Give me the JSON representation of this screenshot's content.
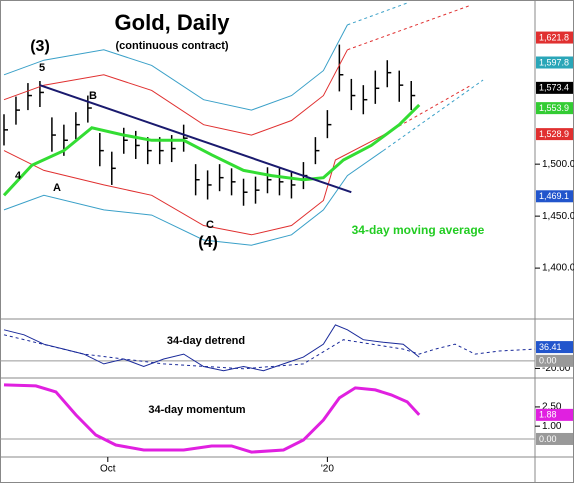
{
  "chart_data": [
    {
      "type": "ohlc",
      "title": "Gold, Daily",
      "subtitle": "(continuous contract)",
      "xlim": [
        -1,
        133
      ],
      "xticks": [
        {
          "value": 26,
          "label": "Oct"
        },
        {
          "value": 81,
          "label": "'20"
        }
      ],
      "ylim": [
        1352,
        1656
      ],
      "yticks": [
        {
          "value": 1400,
          "label": "1,400.0"
        },
        {
          "value": 1450,
          "label": "1,450.0"
        },
        {
          "value": 1500,
          "label": "1,500.0"
        }
      ],
      "series": [
        {
          "name": "price",
          "type": "ohlc",
          "color": "#000000",
          "x": [
            0,
            3,
            6,
            9,
            12,
            15,
            18,
            21,
            24,
            27,
            30,
            33,
            36,
            39,
            42,
            45,
            48,
            51,
            54,
            57,
            60,
            63,
            66,
            69,
            72,
            75,
            78,
            81,
            84,
            87,
            90,
            93,
            96,
            99,
            102
          ],
          "high": [
            1548,
            1565,
            1578,
            1580,
            1545,
            1538,
            1550,
            1566,
            1530,
            1512,
            1535,
            1532,
            1526,
            1526,
            1528,
            1538,
            1500,
            1494,
            1500,
            1496,
            1486,
            1488,
            1497,
            1496,
            1493,
            1502,
            1526,
            1552,
            1615,
            1582,
            1576,
            1590,
            1600,
            1590,
            1580
          ],
          "low": [
            1518,
            1538,
            1552,
            1555,
            1512,
            1508,
            1524,
            1540,
            1498,
            1480,
            1510,
            1505,
            1500,
            1500,
            1502,
            1512,
            1470,
            1466,
            1474,
            1470,
            1460,
            1462,
            1472,
            1470,
            1467,
            1476,
            1500,
            1525,
            1570,
            1552,
            1548,
            1558,
            1574,
            1560,
            1552
          ],
          "close": [
            1533,
            1552,
            1566,
            1569,
            1528,
            1523,
            1538,
            1554,
            1513,
            1496,
            1523,
            1518,
            1513,
            1513,
            1515,
            1525,
            1485,
            1480,
            1487,
            1483,
            1473,
            1475,
            1485,
            1483,
            1480,
            1489,
            1513,
            1538,
            1586,
            1566,
            1562,
            1573,
            1588,
            1576,
            1566
          ]
        },
        {
          "name": "upper outer band",
          "type": "line",
          "color": "#3aa0c8",
          "width": 1,
          "dashed": false,
          "x": [
            0,
            10,
            25,
            37,
            50,
            62,
            72,
            80,
            86
          ],
          "values": [
            1586,
            1600,
            1610,
            1595,
            1562,
            1552,
            1566,
            1590,
            1634
          ]
        },
        {
          "name": "upper outer projection",
          "type": "line",
          "color": "#3aa0c8",
          "width": 1,
          "dashed": true,
          "x": [
            86,
            101
          ],
          "values": [
            1634,
            1655
          ]
        },
        {
          "name": "upper inner band",
          "type": "line",
          "color": "#e03030",
          "width": 1,
          "dashed": false,
          "x": [
            0,
            10,
            25,
            37,
            50,
            62,
            72,
            80,
            86
          ],
          "values": [
            1562,
            1576,
            1586,
            1571,
            1538,
            1528,
            1542,
            1566,
            1610
          ]
        },
        {
          "name": "upper inner projection",
          "type": "line",
          "color": "#e03030",
          "width": 1,
          "dashed": true,
          "x": [
            86,
            117
          ],
          "values": [
            1610,
            1653
          ]
        },
        {
          "name": "lower inner band",
          "type": "line",
          "color": "#e03030",
          "width": 1,
          "dashed": false,
          "x": [
            0,
            10,
            25,
            37,
            50,
            62,
            72,
            80,
            83,
            95
          ],
          "values": [
            1513,
            1494,
            1480,
            1470,
            1441,
            1432,
            1441,
            1465,
            1504,
            1528
          ]
        },
        {
          "name": "lower inner projection",
          "type": "line",
          "color": "#e03030",
          "width": 1,
          "dashed": true,
          "x": [
            95,
            117
          ],
          "values": [
            1528,
            1576
          ]
        },
        {
          "name": "lower outer band",
          "type": "line",
          "color": "#3aa0c8",
          "width": 1,
          "dashed": false,
          "x": [
            0,
            10,
            25,
            37,
            50,
            62,
            72,
            80,
            86,
            95
          ],
          "values": [
            1456,
            1470,
            1456,
            1451,
            1427,
            1422,
            1432,
            1456,
            1489,
            1513
          ]
        },
        {
          "name": "lower outer projection",
          "type": "line",
          "color": "#3aa0c8",
          "width": 1,
          "dashed": true,
          "x": [
            95,
            120
          ],
          "values": [
            1513,
            1581
          ]
        },
        {
          "name": "34-day moving average",
          "type": "line",
          "color": "#33dd33",
          "width": 3,
          "dashed": false,
          "x": [
            0,
            7,
            15,
            22,
            30,
            37,
            45,
            52,
            60,
            67,
            75,
            80,
            85,
            92,
            99,
            104
          ],
          "values": [
            1470,
            1499,
            1513,
            1535,
            1528,
            1523,
            1523,
            1509,
            1494,
            1489,
            1485,
            1487,
            1504,
            1518,
            1538,
            1557
          ]
        },
        {
          "name": "trendline",
          "type": "line",
          "color": "#1a1a6e",
          "width": 2,
          "dashed": false,
          "x": [
            9,
            87
          ],
          "values": [
            1576,
            1473
          ]
        }
      ],
      "last_values": [
        {
          "value": 1621.8,
          "label": "1,621.8",
          "color": "#e03030"
        },
        {
          "value": 1597.8,
          "label": "1,597.8",
          "color": "#2aa6b8"
        },
        {
          "value": 1573.4,
          "label": "1,573.4",
          "color": "#000000"
        },
        {
          "value": 1553.9,
          "label": "1,553.9",
          "color": "#33cc33"
        },
        {
          "value": 1528.9,
          "label": "1,528.9",
          "color": "#e03030"
        },
        {
          "value": 1469.1,
          "label": "1,469.1",
          "color": "#2255cc"
        }
      ],
      "annotations": [
        "(3)",
        "5",
        "B",
        "4",
        "A",
        "C",
        "(4)",
        "34-day moving average"
      ]
    },
    {
      "type": "line",
      "ylim": [
        -40,
        108
      ],
      "yticks": [
        {
          "value": -20,
          "label": "-20.00"
        }
      ],
      "series": [
        {
          "name": "34-day detrend",
          "type": "line",
          "color": "#1a2a9a",
          "width": 1,
          "dashed": false,
          "x": [
            0,
            5,
            10,
            15,
            20,
            25,
            30,
            35,
            40,
            45,
            50,
            55,
            60,
            65,
            70,
            75,
            80,
            83,
            86,
            90,
            95,
            100,
            104
          ],
          "values": [
            82,
            69,
            44,
            31,
            18,
            -8,
            5,
            -15,
            5,
            18,
            -15,
            -26,
            -15,
            -26,
            -8,
            10,
            44,
            95,
            82,
            56,
            49,
            44,
            10
          ]
        },
        {
          "name": "smoothed detrend",
          "type": "line",
          "color": "#1a2a9a",
          "width": 1,
          "dashed": true,
          "x": [
            0,
            20,
            40,
            60,
            75,
            85,
            100,
            104,
            108,
            113,
            118,
            124,
            133
          ],
          "values": [
            69,
            18,
            -8,
            -21,
            -8,
            56,
            31,
            18,
            31,
            44,
            18,
            26,
            31
          ]
        }
      ],
      "last_values": [
        {
          "value": 36.41,
          "label": "36.41",
          "color": "#2255cc"
        }
      ],
      "reference_lines": [
        {
          "value": 0,
          "label": "0.00",
          "color": "#999999"
        }
      ],
      "annotations": [
        "34-day detrend"
      ]
    },
    {
      "type": "line",
      "ylim": [
        -1.25,
        4.6
      ],
      "yticks": [
        {
          "value": 1,
          "label": "1.00"
        },
        {
          "value": 2.5,
          "label": "2.50"
        }
      ],
      "series": [
        {
          "name": "34-day momentum",
          "type": "line",
          "color": "#e020e0",
          "width": 3,
          "dashed": false,
          "x": [
            0,
            8,
            13,
            18,
            23,
            28,
            35,
            45,
            52,
            57,
            62,
            70,
            75,
            80,
            84,
            88,
            93,
            97,
            101,
            104
          ],
          "values": [
            4.22,
            4.14,
            3.67,
            1.88,
            0.31,
            -0.47,
            -0.86,
            -0.86,
            -0.55,
            -0.55,
            -1.02,
            -0.86,
            -0.08,
            1.48,
            3.2,
            3.98,
            3.83,
            3.44,
            2.89,
            1.88
          ]
        }
      ],
      "last_values": [
        {
          "value": 1.88,
          "label": "1.88",
          "color": "#e020e0"
        }
      ],
      "reference_lines": [
        {
          "value": 0,
          "label": "0.00",
          "color": "#999999"
        }
      ],
      "annotations": [
        "34-day momentum"
      ]
    }
  ]
}
